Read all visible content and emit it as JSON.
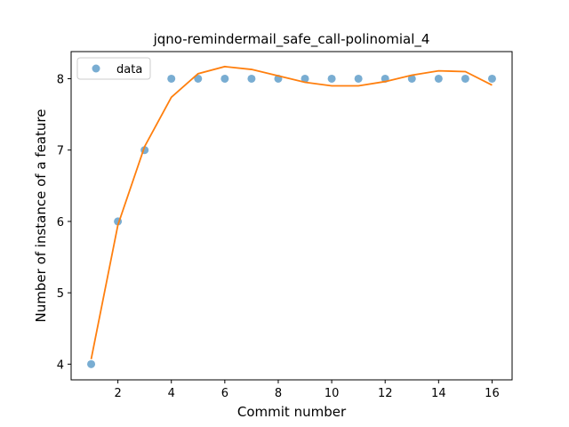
{
  "chart_data": {
    "type": "scatter",
    "title": "jqno-remindermail_safe_call-polinomial_4",
    "xlabel": "Commit number",
    "ylabel": "Number of instance of a feature",
    "xlim": [
      0.25,
      16.75
    ],
    "ylim": [
      3.78,
      8.38
    ],
    "xticks": [
      2,
      4,
      6,
      8,
      10,
      12,
      14,
      16
    ],
    "yticks": [
      4,
      5,
      6,
      7,
      8
    ],
    "grid": false,
    "legend": {
      "position": "top-left",
      "entries": [
        "data"
      ]
    },
    "colors": {
      "data": "#1f77b4",
      "fit": "#ff7f0e"
    },
    "series": [
      {
        "name": "data",
        "kind": "scatter",
        "x": [
          1,
          2,
          3,
          4,
          5,
          6,
          7,
          8,
          9,
          10,
          11,
          12,
          13,
          14,
          15,
          16
        ],
        "y": [
          4,
          6,
          7,
          8,
          8,
          8,
          8,
          8,
          8,
          8,
          8,
          8,
          8,
          8,
          8,
          8
        ]
      },
      {
        "kind": "line",
        "x": [
          1,
          2,
          3,
          4,
          5,
          6,
          7,
          8,
          9,
          10,
          11,
          12,
          13,
          14,
          15,
          16
        ],
        "y": [
          4.07,
          5.95,
          7.05,
          7.74,
          8.07,
          8.17,
          8.13,
          8.04,
          7.95,
          7.9,
          7.9,
          7.96,
          8.05,
          8.11,
          8.1,
          7.91
        ]
      }
    ]
  }
}
